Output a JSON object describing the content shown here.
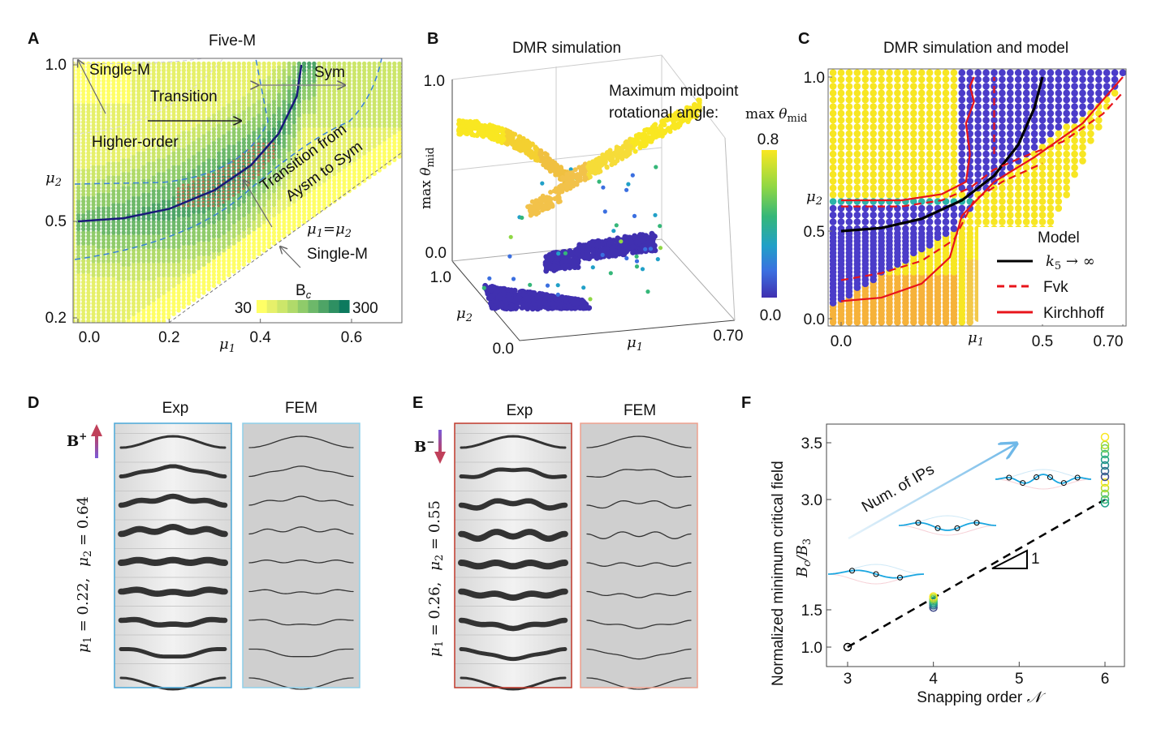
{
  "chart_data": [
    {
      "panel": "A",
      "type": "heatmap",
      "title": "Five-M",
      "xlabel": {
        "sym": "μ",
        "sub": "1"
      },
      "ylabel": {
        "sym": "μ",
        "sub": "2"
      },
      "xlim": [
        0,
        0.7
      ],
      "ylim": [
        0.2,
        1.0
      ],
      "xticks": [
        {
          "v": 0.0,
          "label": "0.0"
        },
        {
          "v": 0.2,
          "label": "0.2"
        },
        {
          "v": 0.4,
          "label": "0.4"
        },
        {
          "v": 0.6,
          "label": "0.6"
        }
      ],
      "yticks": [
        {
          "v": 1.0,
          "label": "1.0"
        },
        {
          "v": 0.5,
          "label": "0.5"
        },
        {
          "v": 0.2,
          "label": "0.2"
        }
      ],
      "colorbar": {
        "label": "B",
        "label_sub": "c",
        "min": 30,
        "max": 300,
        "min_label": "30",
        "max_label": "300",
        "colors": [
          "#ffff66",
          "#e6f06a",
          "#cce66a",
          "#b0da6a",
          "#8fcb6a",
          "#6db86a",
          "#4ea466",
          "#2e9062",
          "#0d7a5e"
        ]
      },
      "annotations": {
        "single_m_top": "Single-M",
        "transition": "Transition",
        "higher_order": "Higher-order",
        "sym": "Sym",
        "transition_from_line1": "Transition from",
        "transition_from_line2": "Aysm to Sym",
        "diag_sym1": "μ",
        "diag_sub1": "1",
        "diag_eq": "=",
        "diag_sym2": "μ",
        "diag_sub2": "2",
        "single_m_bottom": "Single-M"
      },
      "curve_k5": {
        "color": "#1a1a7a",
        "x": [
          0.0,
          0.1,
          0.2,
          0.3,
          0.38,
          0.44,
          0.48,
          0.49
        ],
        "y": [
          0.5,
          0.51,
          0.54,
          0.6,
          0.68,
          0.78,
          0.9,
          1.0
        ]
      }
    },
    {
      "panel": "B",
      "type": "scatter3d",
      "title": "DMR simulation",
      "zlabel": {
        "prefix": "max ",
        "sym": "θ",
        "sub": "mid"
      },
      "xlabel": {
        "sym": "μ",
        "sub": "1"
      },
      "ylabel": {
        "sym": "μ",
        "sub": "2"
      },
      "xlim": [
        0,
        0.7
      ],
      "ylim": [
        0,
        1.0
      ],
      "zlim": [
        0,
        1.0
      ],
      "xtick_max": "0.70",
      "ytick_min": "0.0",
      "ytick_max": "1.0",
      "ztick_min": "0.0",
      "ztick_max": "1.0",
      "annotation_line1": "Maximum midpoint",
      "annotation_line2": "rotational angle: ",
      "annotation_math": {
        "prefix": "max ",
        "sym": "θ",
        "sub": "mid"
      },
      "colorbar": {
        "min": 0.0,
        "max": 0.8,
        "min_label": "0.0",
        "max_label": "0.8",
        "colors": [
          "#f9e721",
          "#8fd744",
          "#35b779",
          "#21a0c8",
          "#3b6fe0",
          "#4030b0"
        ]
      }
    },
    {
      "panel": "C",
      "type": "scatter",
      "title": "DMR simulation and model",
      "xlabel": {
        "sym": "μ",
        "sub": "1"
      },
      "ylabel": {
        "sym": "μ",
        "sub": "2"
      },
      "xlim": [
        0,
        0.7
      ],
      "ylim": [
        0,
        1.0
      ],
      "xticks": [
        {
          "v": 0.0,
          "label": "0.0"
        },
        {
          "v": 0.5,
          "label": "0.5"
        },
        {
          "v": 0.7,
          "label": "0.70"
        }
      ],
      "yticks": [
        {
          "v": 1.0,
          "label": "1.0"
        },
        {
          "v": 0.5,
          "label": "0.5"
        },
        {
          "v": 0.0,
          "label": "0.0"
        }
      ],
      "legend": {
        "position": "bottom-right",
        "title": "Model",
        "entries": [
          {
            "label_sym": "k",
            "label_sub": "5",
            "label_rest": " → ∞",
            "color": "#000000",
            "style": "solid"
          },
          {
            "label": "Fvk",
            "color": "#e8141b",
            "style": "dashed"
          },
          {
            "label": "Kirchhoff",
            "color": "#e8141b",
            "style": "solid"
          }
        ]
      },
      "series": [
        {
          "legend_index": 0,
          "x": [
            0.0,
            0.1,
            0.2,
            0.3,
            0.38,
            0.44,
            0.48,
            0.5
          ],
          "y": [
            0.5,
            0.51,
            0.54,
            0.6,
            0.68,
            0.78,
            0.9,
            1.0
          ]
        },
        {
          "legend_index": 1,
          "x": [
            0.0,
            0.15,
            0.25,
            0.32,
            0.38,
            0.45,
            0.55,
            0.65,
            0.7
          ],
          "y": [
            0.58,
            0.58,
            0.6,
            0.64,
            0.7,
            0.74,
            0.79,
            0.88,
            0.95
          ]
        },
        {
          "legend_index": 1,
          "x": [
            0.0,
            0.1,
            0.2,
            0.28,
            0.33,
            0.4,
            0.5
          ],
          "y": [
            0.22,
            0.26,
            0.33,
            0.45,
            0.6,
            0.66,
            0.72
          ]
        },
        {
          "legend_index": 1,
          "x": [
            0.38,
            0.38,
            0.38
          ],
          "y": [
            0.75,
            0.88,
            1.0
          ]
        },
        {
          "legend_index": 2,
          "x": [
            0.0,
            0.15,
            0.25,
            0.31,
            0.32,
            0.31,
            0.33,
            0.32,
            0.33
          ],
          "y": [
            0.6,
            0.6,
            0.62,
            0.66,
            0.75,
            0.85,
            0.92,
            0.97,
            1.0
          ]
        },
        {
          "legend_index": 2,
          "x": [
            0.0,
            0.1,
            0.2,
            0.27,
            0.3,
            0.38,
            0.48,
            0.6,
            0.7
          ],
          "y": [
            0.1,
            0.12,
            0.2,
            0.35,
            0.55,
            0.66,
            0.74,
            0.85,
            1.0
          ]
        }
      ],
      "point_colors": {
        "low": "#4b3cc9",
        "mid": "#2bb3a8",
        "high": "#f7e623",
        "orange": "#f6b23a"
      }
    },
    {
      "panel": "F",
      "type": "scatter",
      "xlabel": "Snapping order ",
      "xlabel_math": "𝒩",
      "ylabel": "Normalized minimum critical field",
      "ylabel_math": {
        "sym": "B",
        "sub": "c",
        "slash": "/",
        "sym2": "B",
        "sub2": "3"
      },
      "xlim": [
        2.75,
        6.2
      ],
      "ylim": [
        0.8,
        3.65
      ],
      "xticks": [
        {
          "v": 3,
          "label": "3"
        },
        {
          "v": 4,
          "label": "4"
        },
        {
          "v": 5,
          "label": "5"
        },
        {
          "v": 6,
          "label": "6"
        }
      ],
      "yticks": [
        {
          "v": 1.0,
          "label": "1.0"
        },
        {
          "v": 1.5,
          "label": "1.5"
        },
        {
          "v": 3.0,
          "label": "3.0"
        },
        {
          "v": 3.5,
          "label": "3.5"
        }
      ],
      "points": [
        {
          "x": 3,
          "y": [
            1.0
          ]
        },
        {
          "x": 4,
          "y": [
            1.53,
            1.56,
            1.58,
            1.6,
            1.62,
            1.64,
            1.66,
            1.68
          ]
        },
        {
          "x": 6,
          "y": [
            2.95,
            3.0,
            3.05,
            3.1,
            3.15,
            3.2,
            3.25,
            3.3,
            3.35,
            3.4,
            3.45,
            3.48,
            3.55
          ]
        }
      ],
      "fit_line": {
        "x": [
          3,
          6
        ],
        "y": [
          1.0,
          3.0
        ],
        "style": "dashed",
        "slope_label": "1"
      },
      "annotation": "Num. of IPs"
    }
  ],
  "panels": {
    "A": {
      "letter": "A"
    },
    "B": {
      "letter": "B"
    },
    "C": {
      "letter": "C"
    },
    "D": {
      "letter": "D",
      "exp_label": "Exp",
      "fem_label": "FEM",
      "field_sym": "B",
      "field_sign": "+",
      "params": {
        "mu1_sym": "μ",
        "mu1_sub": "1",
        "mu1_val": " = 0.22,",
        "mu2_sym": "μ",
        "mu2_sub": "2",
        "mu2_val": " = 0.64"
      },
      "exp_border": "#4aa8d8",
      "fem_border": "#8fd0ea"
    },
    "E": {
      "letter": "E",
      "exp_label": "Exp",
      "fem_label": "FEM",
      "field_sym": "B",
      "field_sign": "−",
      "params": {
        "mu1_sym": "μ",
        "mu1_sub": "1",
        "mu1_val": " = 0.26,",
        "mu2_sym": "μ",
        "mu2_sub": "2",
        "mu2_val": " = 0.55"
      },
      "exp_border": "#c0392b",
      "fem_border": "#eea08e"
    },
    "F": {
      "letter": "F"
    }
  }
}
